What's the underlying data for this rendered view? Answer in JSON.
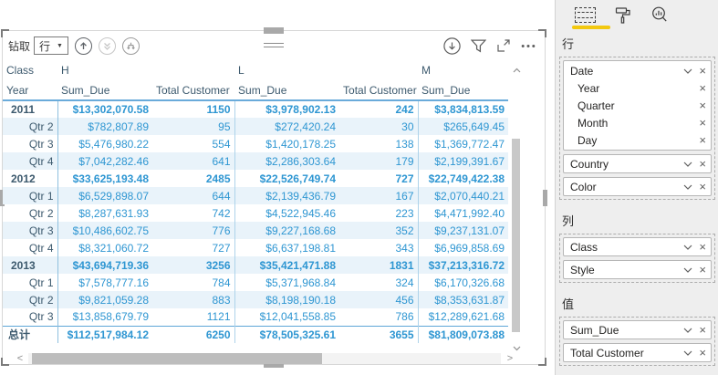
{
  "visual": {
    "drill_bar": {
      "drill_label": "钻取",
      "drill_mode_value": "行"
    },
    "matrix": {
      "corner_top": "Class",
      "corner_bottom": "Year",
      "column_groups": [
        "H",
        "L",
        "M"
      ],
      "measure_headers": [
        "Sum_Due",
        "Total Customer",
        "Sum_Due",
        "Total Customer",
        "Sum_Due"
      ],
      "rows": [
        {
          "label": "2011",
          "type": "year",
          "banded": false,
          "cells": [
            "$13,302,070.58",
            "1150",
            "$3,978,902.13",
            "242",
            "$3,834,813.59"
          ]
        },
        {
          "label": "Qtr 2",
          "type": "quarter",
          "banded": true,
          "cells": [
            "$782,807.89",
            "95",
            "$272,420.24",
            "30",
            "$265,649.45"
          ]
        },
        {
          "label": "Qtr 3",
          "type": "quarter",
          "banded": false,
          "cells": [
            "$5,476,980.22",
            "554",
            "$1,420,178.25",
            "138",
            "$1,369,772.47"
          ]
        },
        {
          "label": "Qtr 4",
          "type": "quarter",
          "banded": true,
          "cells": [
            "$7,042,282.46",
            "641",
            "$2,286,303.64",
            "179",
            "$2,199,391.67"
          ]
        },
        {
          "label": "2012",
          "type": "year",
          "banded": false,
          "cells": [
            "$33,625,193.48",
            "2485",
            "$22,526,749.74",
            "727",
            "$22,749,422.38"
          ]
        },
        {
          "label": "Qtr 1",
          "type": "quarter",
          "banded": true,
          "cells": [
            "$6,529,898.07",
            "644",
            "$2,139,436.79",
            "167",
            "$2,070,440.21"
          ]
        },
        {
          "label": "Qtr 2",
          "type": "quarter",
          "banded": false,
          "cells": [
            "$8,287,631.93",
            "742",
            "$4,522,945.46",
            "223",
            "$4,471,992.40"
          ]
        },
        {
          "label": "Qtr 3",
          "type": "quarter",
          "banded": true,
          "cells": [
            "$10,486,602.75",
            "776",
            "$9,227,168.68",
            "352",
            "$9,237,131.07"
          ]
        },
        {
          "label": "Qtr 4",
          "type": "quarter",
          "banded": false,
          "cells": [
            "$8,321,060.72",
            "727",
            "$6,637,198.81",
            "343",
            "$6,969,858.69"
          ]
        },
        {
          "label": "2013",
          "type": "year",
          "banded": true,
          "cells": [
            "$43,694,719.36",
            "3256",
            "$35,421,471.88",
            "1831",
            "$37,213,316.72"
          ]
        },
        {
          "label": "Qtr 1",
          "type": "quarter",
          "banded": false,
          "cells": [
            "$7,578,777.16",
            "784",
            "$5,371,968.84",
            "324",
            "$6,170,326.68"
          ]
        },
        {
          "label": "Qtr 2",
          "type": "quarter",
          "banded": true,
          "cells": [
            "$9,821,059.28",
            "883",
            "$8,198,190.18",
            "456",
            "$8,353,631.87"
          ]
        },
        {
          "label": "Qtr 3",
          "type": "quarter",
          "banded": false,
          "cells": [
            "$13,858,679.79",
            "1121",
            "$12,041,558.85",
            "786",
            "$12,289,621.68"
          ]
        },
        {
          "label": "总计",
          "type": "total",
          "banded": false,
          "cells": [
            "$112,517,984.12",
            "6250",
            "$78,505,325.61",
            "3655",
            "$81,809,073.88"
          ]
        }
      ]
    }
  },
  "pane": {
    "sections": {
      "rows": {
        "label": "行",
        "fields": [
          {
            "name": "Date",
            "children": [
              "Year",
              "Quarter",
              "Month",
              "Day"
            ]
          },
          {
            "name": "Country"
          },
          {
            "name": "Color"
          }
        ]
      },
      "columns": {
        "label": "列",
        "fields": [
          {
            "name": "Class"
          },
          {
            "name": "Style"
          }
        ]
      },
      "values": {
        "label": "值",
        "fields": [
          {
            "name": "Sum_Due"
          },
          {
            "name": "Total Customer"
          }
        ]
      }
    }
  },
  "colors": {
    "value_blue": "#2e96d2",
    "header_slate": "#3d5a6e",
    "band_blue": "#e9f3fa",
    "tab_underline_yellow": "#f2c80f"
  }
}
